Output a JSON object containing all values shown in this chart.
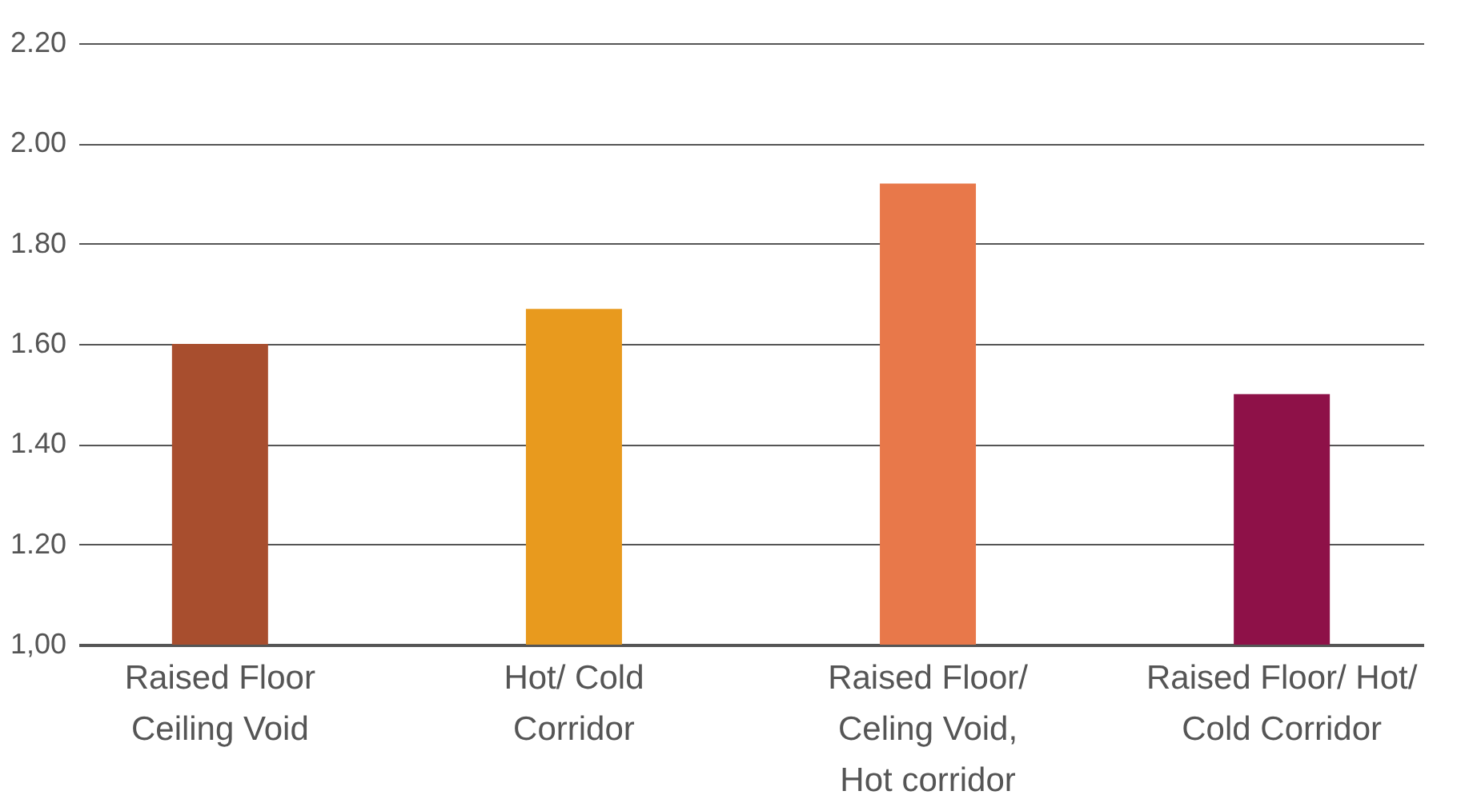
{
  "chart_data": {
    "type": "bar",
    "categories": [
      "Raised Floor\nCeiling Void",
      "Hot/ Cold\nCorridor",
      "Raised Floor/\nCeling Void,\nHot corridor",
      "Raised Floor/ Hot/\nCold Corridor"
    ],
    "values": [
      1.6,
      1.67,
      1.92,
      1.5
    ],
    "colors": [
      "#a84e2e",
      "#e89a1e",
      "#e8784a",
      "#8e1148"
    ],
    "ylim": [
      1.0,
      2.2
    ],
    "yticks": [
      {
        "value": 1.0,
        "label": "1,00"
      },
      {
        "value": 1.2,
        "label": "1.20"
      },
      {
        "value": 1.4,
        "label": "1.40"
      },
      {
        "value": 1.6,
        "label": "1.60"
      },
      {
        "value": 1.8,
        "label": "1.80"
      },
      {
        "value": 2.0,
        "label": "2.00"
      },
      {
        "value": 2.2,
        "label": "2.20"
      }
    ],
    "grid": "y"
  }
}
